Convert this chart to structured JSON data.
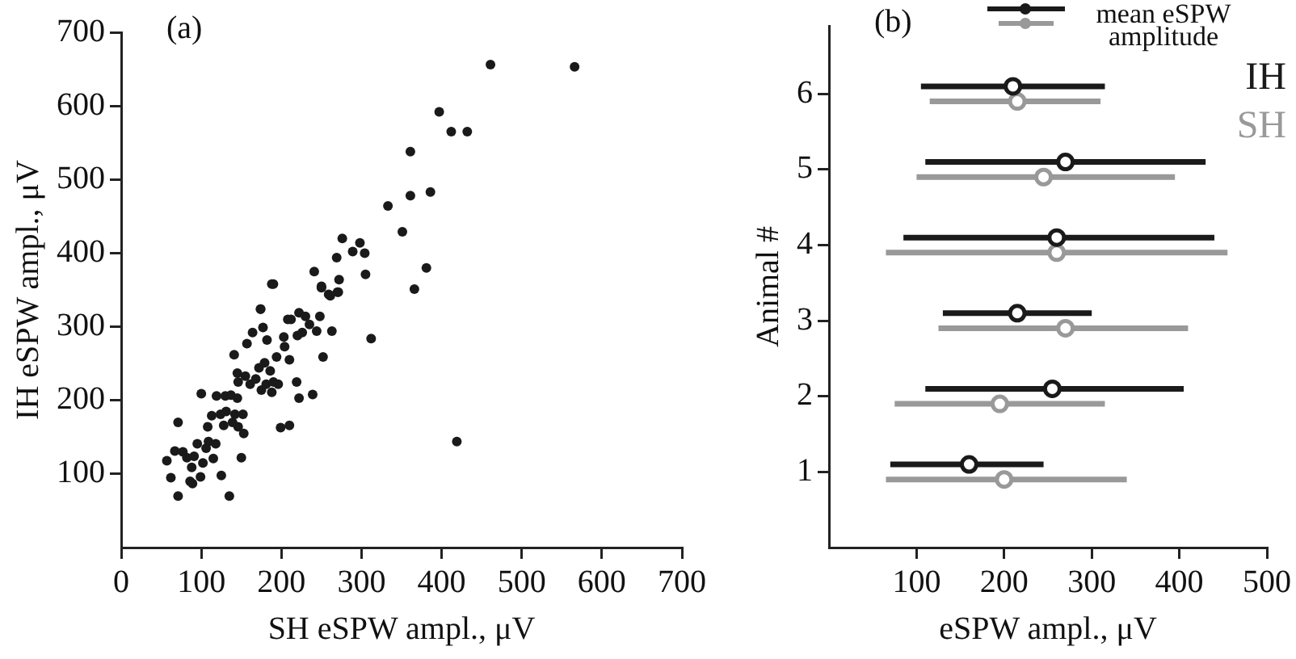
{
  "chart_data": [
    {
      "type": "scatter",
      "xlabel": "SH eSPW ampl., μV",
      "ylabel": "IH eSPW ampl., μV",
      "annotations": [
        "(a)"
      ],
      "xlim": [
        0,
        700
      ],
      "ylim": [
        0,
        700
      ],
      "xticks": [
        0,
        100,
        200,
        300,
        400,
        500,
        600,
        700
      ],
      "yticks": [
        100,
        200,
        300,
        400,
        500,
        600,
        700
      ],
      "grid": false,
      "marker": "circle",
      "series": [
        {
          "color": "#1a1a1a",
          "x": [
            57,
            62,
            71,
            71,
            67,
            77,
            82,
            88,
            86,
            89,
            91,
            95,
            99,
            102,
            100,
            106,
            108,
            109,
            113,
            115,
            119,
            118,
            124,
            125,
            128,
            130,
            131,
            135,
            137,
            139,
            142,
            145,
            146,
            150,
            152,
            153,
            141,
            145,
            146,
            155,
            157,
            161,
            164,
            168,
            172,
            174,
            175,
            177,
            179,
            181,
            182,
            186,
            188,
            190,
            196,
            194,
            199,
            203,
            204,
            208,
            210,
            210,
            212,
            219,
            220,
            222,
            222,
            226,
            230,
            235,
            239,
            244,
            248,
            252,
            263,
            259,
            270,
            250,
            312,
            366,
            190,
            361,
            361,
            386,
            333,
            351,
            381,
            276,
            298,
            269,
            289,
            304,
            241,
            250,
            261,
            271,
            272,
            305,
            188,
            174,
            461,
            566,
            397,
            412,
            432,
            419
          ],
          "values": [
            118,
            95,
            70,
            170,
            131,
            130,
            122,
            109,
            90,
            87,
            124,
            141,
            96,
            115,
            209,
            135,
            164,
            144,
            179,
            121,
            206,
            141,
            181,
            98,
            166,
            206,
            185,
            70,
            207,
            170,
            181,
            203,
            164,
            122,
            181,
            155,
            262,
            237,
            225,
            233,
            277,
            222,
            292,
            229,
            244,
            324,
            214,
            299,
            251,
            222,
            282,
            240,
            211,
            225,
            222,
            259,
            163,
            286,
            273,
            310,
            255,
            166,
            310,
            225,
            288,
            319,
            203,
            292,
            314,
            303,
            208,
            294,
            314,
            259,
            294,
            344,
            347,
            353,
            284,
            351,
            358,
            538,
            478,
            483,
            464,
            429,
            380,
            420,
            414,
            394,
            402,
            400,
            375,
            355,
            342,
            347,
            364,
            371,
            358,
            324,
            656,
            653,
            592,
            565,
            565,
            144
          ]
        }
      ]
    },
    {
      "type": "scatter",
      "xlabel": "eSPW ampl., μV",
      "ylabel": "Animal #",
      "annotations": [
        "(b)"
      ],
      "xlim": [
        0,
        500
      ],
      "ylim": [
        0,
        6.9
      ],
      "xticks": [
        100,
        200,
        300,
        400,
        500
      ],
      "yticks": [
        1,
        2,
        3,
        4,
        5,
        6
      ],
      "grid": false,
      "marker": "circle",
      "legend": "top right",
      "legend_title": "mean eSPW amplitude",
      "series": [
        {
          "name": "IH",
          "color": "#1a1a1a",
          "x": [
            160,
            255,
            215,
            260,
            270,
            210
          ],
          "values": [
            1.1,
            2.1,
            3.1,
            4.1,
            5.1,
            6.1
          ],
          "xerrors": [
            [
              70,
              245
            ],
            [
              110,
              405
            ],
            [
              130,
              300
            ],
            [
              85,
              440
            ],
            [
              110,
              430
            ],
            [
              105,
              315
            ]
          ]
        },
        {
          "name": "SH",
          "color": "#999999",
          "x": [
            200,
            195,
            270,
            260,
            245,
            215
          ],
          "values": [
            0.9,
            1.9,
            2.9,
            3.9,
            4.9,
            5.9
          ],
          "xerrors": [
            [
              65,
              340
            ],
            [
              75,
              315
            ],
            [
              125,
              410
            ],
            [
              65,
              455
            ],
            [
              100,
              395
            ],
            [
              115,
              310
            ]
          ]
        }
      ]
    }
  ]
}
